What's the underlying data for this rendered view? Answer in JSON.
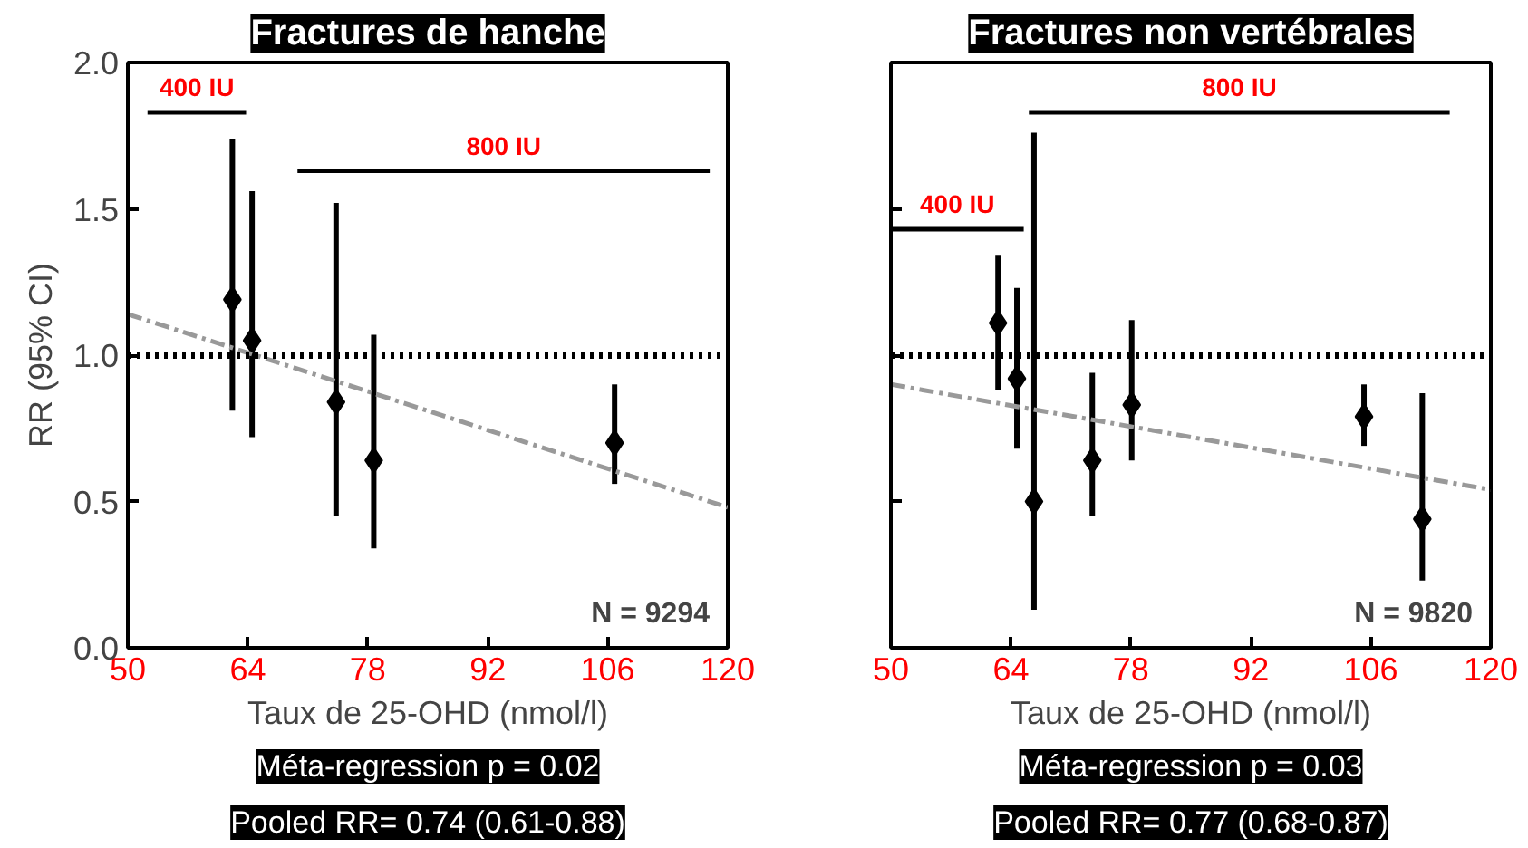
{
  "chart_data": [
    {
      "type": "scatter",
      "title": "Fractures de hanche",
      "xlabel": "Taux de 25-OHD (nmol/l)",
      "ylabel": "RR (95% CI)",
      "xlim": [
        50,
        120
      ],
      "xticks": [
        50,
        64,
        78,
        92,
        106,
        120
      ],
      "ylim": [
        0,
        2
      ],
      "yticks": [
        {
          "value": 0,
          "label": "0.0"
        },
        {
          "value": 0.5,
          "label": "0.5"
        },
        {
          "value": 1,
          "label": "1.0"
        },
        {
          "value": 1.5,
          "label": "1.5"
        },
        {
          "value": 2,
          "label": "2.0"
        }
      ],
      "grid": false,
      "series": [
        {
          "color": "#000000",
          "marker": "diamond",
          "x": [
            62.2,
            64.5,
            74.3,
            78.7,
            106.8
          ],
          "values": [
            1.19,
            1.05,
            0.84,
            0.64,
            0.7
          ],
          "errors": [
            [
              0.81,
              1.74
            ],
            [
              0.72,
              1.56
            ],
            [
              0.45,
              1.52
            ],
            [
              0.34,
              1.07
            ],
            [
              0.56,
              0.9
            ]
          ]
        },
        {
          "type": "line",
          "marker": "none",
          "color": "#999999",
          "line_style": "dashed",
          "x": [
            50,
            120
          ],
          "values": [
            1.14,
            0.48
          ]
        },
        {
          "type": "line",
          "marker": "none",
          "name": "400 IU",
          "color": "#000000",
          "x": [
            52.3,
            63.8
          ],
          "values": [
            1.83,
            1.83
          ]
        },
        {
          "type": "line",
          "marker": "none",
          "name": "800 IU",
          "color": "#000000",
          "x": [
            69.8,
            117.9
          ],
          "values": [
            1.63,
            1.63
          ]
        }
      ],
      "ref_lines": [
        {
          "axis": "y",
          "value": 1,
          "label": null,
          "color": "#000000",
          "line_style": "dotted"
        }
      ],
      "annotations": [
        "N = 9294",
        "Méta-regression p = 0.02",
        "Pooled RR= 0.74 (0.61-0.88)"
      ]
    },
    {
      "type": "scatter",
      "title": "Fractures non vertébrales",
      "xlabel": "Taux de 25-OHD (nmol/l)",
      "xlim": [
        50,
        120
      ],
      "xticks": [
        50,
        64,
        78,
        92,
        106,
        120
      ],
      "ylim": [
        0,
        2
      ],
      "yticks": [
        {
          "value": 0,
          "label": null
        },
        {
          "value": 0.5,
          "label": null
        },
        {
          "value": 1,
          "label": null
        },
        {
          "value": 1.5,
          "label": null
        },
        {
          "value": 2,
          "label": null
        }
      ],
      "tick_labels": "x",
      "grid": false,
      "series": [
        {
          "color": "#000000",
          "marker": "diamond",
          "x": [
            62.5,
            64.7,
            66.7,
            73.5,
            78.1,
            105.2,
            112.0
          ],
          "values": [
            1.11,
            0.92,
            0.5,
            0.64,
            0.83,
            0.79,
            0.44
          ],
          "errors": [
            [
              0.88,
              1.34
            ],
            [
              0.68,
              1.23
            ],
            [
              0.13,
              1.76
            ],
            [
              0.45,
              0.94
            ],
            [
              0.64,
              1.12
            ],
            [
              0.69,
              0.9
            ],
            [
              0.23,
              0.87
            ]
          ]
        },
        {
          "type": "line",
          "marker": "none",
          "color": "#999999",
          "line_style": "dashed",
          "x": [
            50,
            120
          ],
          "values": [
            0.9,
            0.54
          ]
        },
        {
          "type": "line",
          "marker": "none",
          "name": "400 IU",
          "color": "#000000",
          "x": [
            50,
            65.5
          ],
          "values": [
            1.43,
            1.43
          ]
        },
        {
          "type": "line",
          "marker": "none",
          "name": "800 IU",
          "color": "#000000",
          "x": [
            66.1,
            115.2
          ],
          "values": [
            1.83,
            1.83
          ]
        }
      ],
      "ref_lines": [
        {
          "axis": "y",
          "value": 1,
          "label": null,
          "color": "#000000",
          "line_style": "dotted"
        }
      ],
      "annotations": [
        "N = 9820",
        "Méta-regression p = 0.03",
        "Pooled RR= 0.77 (0.68-0.87)"
      ]
    }
  ]
}
